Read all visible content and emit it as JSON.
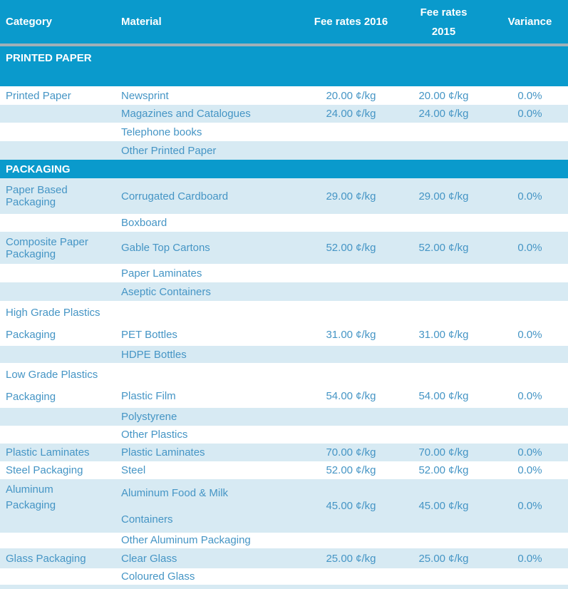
{
  "colors": {
    "accent_teal": "#0a9acc",
    "row_light_blue": "#d7eaf3",
    "text_blue": "#4595c5",
    "header_text": "#ffffff",
    "header_divider_gray": "#9fb0b8"
  },
  "table": {
    "headers": {
      "category": "Category",
      "material": "Material",
      "fee_2016": "Fee rates 2016",
      "fee_2015": "Fee rates 2015",
      "variance": "Variance"
    },
    "sections": [
      {
        "title": "PRINTED PAPER"
      },
      {
        "title": "PACKAGING"
      }
    ],
    "rows": [
      {
        "category": "Printed Paper",
        "material": "Newsprint",
        "fee_2016": "20.00 ¢/kg",
        "fee_2015": "20.00 ¢/kg",
        "variance": "0.0%"
      },
      {
        "category": "",
        "material": "Magazines and Catalogues",
        "fee_2016": "24.00 ¢/kg",
        "fee_2015": "24.00 ¢/kg",
        "variance": "0.0%"
      },
      {
        "category": "",
        "material": "Telephone books",
        "fee_2016": "",
        "fee_2015": "",
        "variance": ""
      },
      {
        "category": "",
        "material": "Other Printed Paper",
        "fee_2016": "",
        "fee_2015": "",
        "variance": ""
      },
      {
        "category": "Paper Based Packaging",
        "material": "Corrugated Cardboard",
        "fee_2016": "29.00 ¢/kg",
        "fee_2015": "29.00 ¢/kg",
        "variance": "0.0%"
      },
      {
        "category": "",
        "material": "Boxboard",
        "fee_2016": "",
        "fee_2015": "",
        "variance": ""
      },
      {
        "category": "Composite Paper Packaging",
        "material": "Gable Top Cartons",
        "fee_2016": "52.00 ¢/kg",
        "fee_2015": "52.00 ¢/kg",
        "variance": "0.0%"
      },
      {
        "category": "",
        "material": "Paper Laminates",
        "fee_2016": "",
        "fee_2015": "",
        "variance": ""
      },
      {
        "category": "",
        "material": "Aseptic Containers",
        "fee_2016": "",
        "fee_2015": "",
        "variance": ""
      },
      {
        "category": "High Grade Plastics Packaging",
        "material": "",
        "fee_2016": "",
        "fee_2015": "",
        "variance": ""
      },
      {
        "material": "PET Bottles",
        "fee_2016": "31.00 ¢/kg",
        "fee_2015": "31.00 ¢/kg",
        "variance": "0.0%"
      },
      {
        "category": "",
        "material": "HDPE Bottles",
        "fee_2016": "",
        "fee_2015": "",
        "variance": ""
      },
      {
        "category": "Low Grade Plastics Packaging",
        "material": "",
        "fee_2016": "",
        "fee_2015": "",
        "variance": ""
      },
      {
        "material": "Plastic Film",
        "fee_2016": "54.00 ¢/kg",
        "fee_2015": "54.00 ¢/kg",
        "variance": "0.0%"
      },
      {
        "category": "",
        "material": "Polystyrene",
        "fee_2016": "",
        "fee_2015": "",
        "variance": ""
      },
      {
        "category": "",
        "material": "Other Plastics",
        "fee_2016": "",
        "fee_2015": "",
        "variance": ""
      },
      {
        "category": "Plastic Laminates",
        "material": "Plastic Laminates",
        "fee_2016": "70.00 ¢/kg",
        "fee_2015": "70.00 ¢/kg",
        "variance": "0.0%"
      },
      {
        "category": "Steel Packaging",
        "material": "Steel",
        "fee_2016": "52.00 ¢/kg",
        "fee_2015": "52.00 ¢/kg",
        "variance": "0.0%"
      },
      {
        "category": "Aluminum Packaging",
        "material": "Aluminum Food & Milk Containers",
        "fee_2016": "45.00 ¢/kg",
        "fee_2015": "45.00 ¢/kg",
        "variance": "0.0%"
      },
      {
        "category": "",
        "material": "Other Aluminum Packaging",
        "fee_2016": "",
        "fee_2015": "",
        "variance": ""
      },
      {
        "category": "Glass Packaging",
        "material": "Clear Glass",
        "fee_2016": "25.00 ¢/kg",
        "fee_2015": "25.00 ¢/kg",
        "variance": "0.0%"
      },
      {
        "category": "",
        "material": "Coloured Glass",
        "fee_2016": "",
        "fee_2015": "",
        "variance": ""
      }
    ]
  }
}
